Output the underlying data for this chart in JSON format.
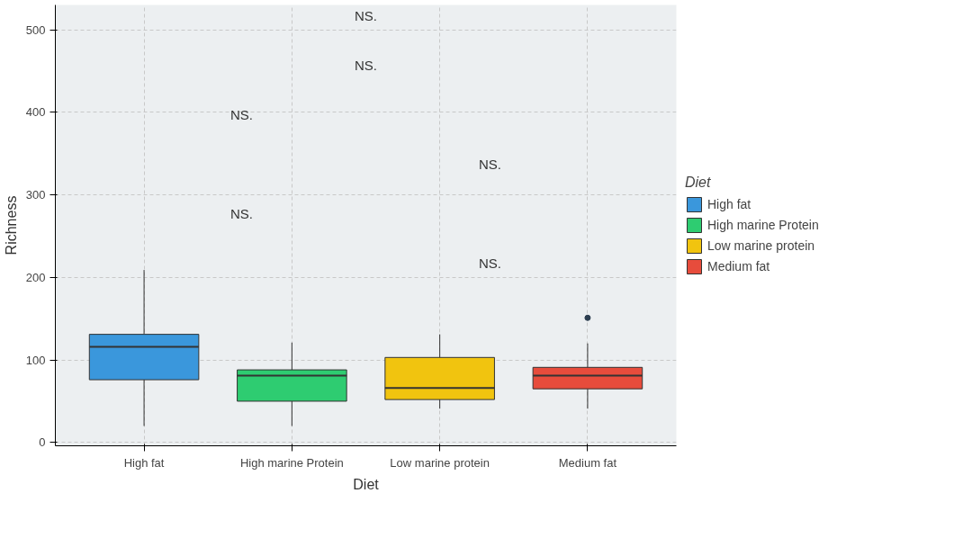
{
  "chart_data": {
    "type": "box",
    "xlabel": "Diet",
    "ylabel": "Richness",
    "legend_title": "Diet",
    "categories": [
      "High fat",
      "High marine Protein",
      "Low marine protein",
      "Medium fat"
    ],
    "series": [
      {
        "name": "High fat",
        "color": "#3a97dc",
        "boxes": [
          {
            "low": 20,
            "q1": 76,
            "median": 116,
            "q3": 131,
            "high": 209
          },
          null,
          null,
          null
        ]
      },
      {
        "name": "High marine Protein",
        "color": "#2ecc71",
        "boxes": [
          null,
          {
            "low": 20,
            "q1": 50,
            "median": 81,
            "q3": 88,
            "high": 121
          },
          null,
          null
        ]
      },
      {
        "name": "Low marine protein",
        "color": "#f1c40f",
        "boxes": [
          null,
          null,
          {
            "low": 41,
            "q1": 52,
            "median": 66,
            "q3": 103,
            "high": 131
          },
          null
        ]
      },
      {
        "name": "Medium fat",
        "color": "#e74c3c",
        "boxes": [
          null,
          null,
          null,
          {
            "low": 41,
            "q1": 65,
            "median": 81,
            "q3": 91,
            "high": 120,
            "outliers": [
              151
            ]
          }
        ]
      }
    ],
    "annotations": [
      "NS.",
      "NS.",
      "NS.",
      "NS.",
      "NS.",
      "NS."
    ],
    "ylim": [
      -4,
      530
    ],
    "yticks": [
      0,
      100,
      200,
      300,
      400,
      500
    ],
    "grid": true,
    "legend": "right"
  }
}
